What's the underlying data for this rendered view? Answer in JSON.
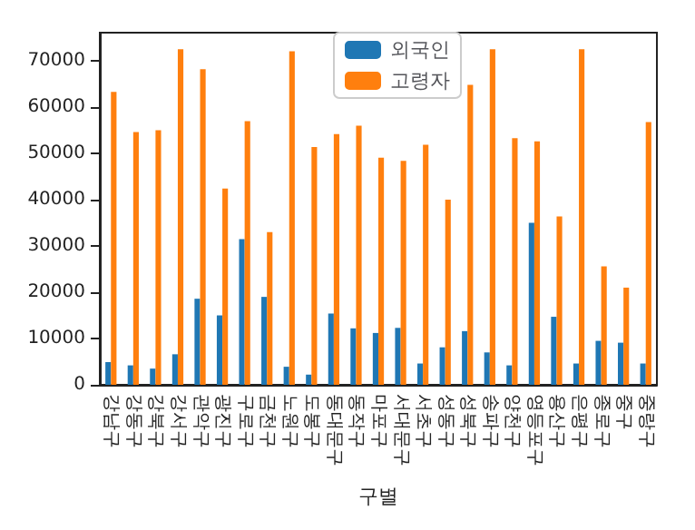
{
  "chart_data": {
    "type": "bar",
    "xlabel": "구별",
    "categories": [
      "강남구",
      "강동구",
      "강북구",
      "강서구",
      "관악구",
      "광진구",
      "구로구",
      "금천구",
      "노원구",
      "도봉구",
      "동대문구",
      "동작구",
      "마포구",
      "서대문구",
      "서초구",
      "성동구",
      "성북구",
      "송파구",
      "양천구",
      "영등포구",
      "용산구",
      "은평구",
      "종로구",
      "중구",
      "중랑구"
    ],
    "series": [
      {
        "name": "외국인",
        "color": "#1f77b4",
        "values": [
          4900,
          4200,
          3500,
          6600,
          18600,
          15000,
          31500,
          19000,
          3900,
          2200,
          15400,
          12200,
          11200,
          12300,
          4600,
          8100,
          11600,
          7000,
          4200,
          35000,
          14700,
          4600,
          9500,
          9100,
          4600
        ]
      },
      {
        "name": "고령자",
        "color": "#ff7f0e",
        "values": [
          63300,
          54600,
          55000,
          72500,
          68200,
          42400,
          57000,
          33000,
          72100,
          51400,
          54200,
          56000,
          49100,
          48400,
          51900,
          40000,
          64800,
          72500,
          53300,
          52600,
          36400,
          72500,
          25600,
          21000,
          56800
        ]
      }
    ],
    "ylim": [
      0,
      76100
    ],
    "yticks": [
      0,
      10000,
      20000,
      30000,
      40000,
      50000,
      60000,
      70000
    ],
    "grid": false,
    "legend": "top"
  }
}
